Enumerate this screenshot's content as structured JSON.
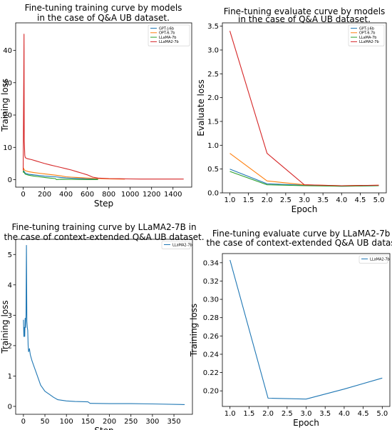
{
  "chart_data": [
    {
      "type": "line",
      "title": "Fine-tuning training curve by models\nin the case of Q&A UB dataset.",
      "xlabel": "Step",
      "ylabel": "Training loss",
      "xlim": [
        -70,
        1575
      ],
      "ylim": [
        -2.3,
        48.5
      ],
      "xticks": [
        0,
        200,
        400,
        600,
        800,
        1000,
        1200,
        1400
      ],
      "yticks": [
        0,
        10,
        20,
        30,
        40
      ],
      "legend": "top-right",
      "series": [
        {
          "name": "GPT-J-6b",
          "color": "#1f77b4",
          "x": [
            0,
            3,
            8,
            20,
            50,
            100,
            150,
            200,
            250,
            300,
            350,
            400,
            450,
            500,
            600,
            700
          ],
          "y": [
            2.4,
            2.9,
            2.6,
            2.0,
            1.7,
            1.5,
            1.3,
            1.1,
            1.0,
            0.9,
            0.7,
            0.55,
            0.45,
            0.4,
            0.3,
            0.25
          ]
        },
        {
          "name": "OPT-6.7b",
          "color": "#ff7f0e",
          "x": [
            0,
            3,
            8,
            20,
            50,
            100,
            150,
            200,
            250,
            300,
            350,
            400,
            450,
            500,
            600,
            700,
            800,
            900,
            950
          ],
          "y": [
            2.8,
            3.6,
            3.2,
            2.8,
            2.5,
            2.2,
            2.0,
            1.8,
            1.6,
            1.4,
            1.2,
            0.9,
            0.8,
            0.7,
            0.5,
            0.35,
            0.25,
            0.2,
            0.18
          ]
        },
        {
          "name": "LLaMA-7b",
          "color": "#2ca02c",
          "x": [
            0,
            3,
            8,
            20,
            50,
            100,
            150,
            200,
            250,
            300,
            310,
            350,
            400,
            450,
            500,
            600,
            700
          ],
          "y": [
            2.2,
            2.6,
            2.3,
            1.7,
            1.4,
            1.1,
            0.9,
            0.7,
            0.5,
            0.35,
            0.05,
            0.15,
            0.1,
            0.1,
            0.08,
            0.05,
            0.05
          ]
        },
        {
          "name": "LLaMA2-7b",
          "color": "#d62728",
          "x": [
            0,
            5,
            8,
            10,
            15,
            20,
            40,
            80,
            120,
            160,
            200,
            250,
            300,
            350,
            400,
            450,
            500,
            550,
            600,
            650,
            700,
            800,
            900,
            1000,
            1100,
            1200,
            1300,
            1400,
            1500
          ],
          "y": [
            3.0,
            30.0,
            45.0,
            12.0,
            7.5,
            6.8,
            6.5,
            6.2,
            5.8,
            5.4,
            5.0,
            4.6,
            4.2,
            3.8,
            3.4,
            3.0,
            2.5,
            2.0,
            1.5,
            0.8,
            0.5,
            0.35,
            0.3,
            0.25,
            0.2,
            0.2,
            0.2,
            0.2,
            0.2
          ]
        }
      ]
    },
    {
      "type": "line",
      "title": "Fine-tuning evaluate curve by models\nin the case of Q&A UB dataset.",
      "xlabel": "Epoch",
      "ylabel": "Evaluate loss",
      "xlim": [
        0.8,
        5.2
      ],
      "ylim": [
        0.0,
        3.57
      ],
      "xticks": [
        1.0,
        1.5,
        2.0,
        2.5,
        3.0,
        3.5,
        4.0,
        4.5,
        5.0
      ],
      "yticks": [
        0.0,
        0.5,
        1.0,
        1.5,
        2.0,
        2.5,
        3.0,
        3.5
      ],
      "legend": "top-right",
      "series": [
        {
          "name": "GPT-J-6b",
          "color": "#1f77b4",
          "x": [
            1,
            2,
            3,
            4,
            5
          ],
          "y": [
            0.5,
            0.19,
            0.16,
            0.14,
            0.15
          ]
        },
        {
          "name": "OPT-6.7b",
          "color": "#ff7f0e",
          "x": [
            1,
            2,
            3,
            4,
            5
          ],
          "y": [
            0.83,
            0.25,
            0.17,
            0.15,
            0.16
          ]
        },
        {
          "name": "LLaMA-7b",
          "color": "#2ca02c",
          "x": [
            1,
            2,
            3,
            4,
            5
          ],
          "y": [
            0.45,
            0.17,
            0.15,
            0.14,
            0.15
          ]
        },
        {
          "name": "LLaMA2-7b",
          "color": "#d62728",
          "x": [
            1,
            2,
            3,
            4,
            5
          ],
          "y": [
            3.4,
            0.83,
            0.17,
            0.15,
            0.16
          ]
        }
      ]
    },
    {
      "type": "line",
      "title": "Fine-tuning training curve by LLaMA2-7B in\nthe case of context-extended Q&A UB dataset.",
      "xlabel": "Step",
      "ylabel": "Training loss",
      "xlim": [
        -18,
        393
      ],
      "ylim": [
        -0.26,
        5.5
      ],
      "xticks": [
        0,
        50,
        100,
        150,
        200,
        250,
        300,
        350
      ],
      "yticks": [
        0,
        1,
        2,
        3,
        4,
        5
      ],
      "legend": "top-right",
      "series": [
        {
          "name": "LLaMA2-7b",
          "color": "#1f77b4",
          "x": [
            0,
            1,
            2,
            3,
            4,
            5,
            6,
            7,
            8,
            9,
            10,
            11,
            12,
            14,
            16,
            18,
            20,
            25,
            30,
            35,
            40,
            45,
            50,
            55,
            60,
            70,
            80,
            100,
            120,
            150,
            155,
            200,
            250,
            300,
            375
          ],
          "y": [
            2.85,
            2.3,
            2.6,
            2.3,
            2.9,
            2.6,
            3.0,
            5.3,
            2.8,
            2.6,
            2.5,
            2.0,
            1.8,
            1.9,
            1.7,
            1.6,
            1.5,
            1.3,
            1.1,
            0.9,
            0.7,
            0.6,
            0.5,
            0.45,
            0.4,
            0.3,
            0.22,
            0.18,
            0.16,
            0.15,
            0.1,
            0.09,
            0.09,
            0.08,
            0.06
          ]
        }
      ]
    },
    {
      "type": "line",
      "title": "Fine-tuning evaluate curve by LLaMA2-7b in\nthe case of context-extended Q&A UB dataset.",
      "xlabel": "Epoch",
      "ylabel": "Training loss",
      "xlim": [
        0.8,
        5.2
      ],
      "ylim": [
        0.183,
        0.35
      ],
      "xticks": [
        1.0,
        1.5,
        2.0,
        2.5,
        3.0,
        3.5,
        4.0,
        4.5,
        5.0
      ],
      "yticks": [
        0.2,
        0.22,
        0.24,
        0.26,
        0.28,
        0.3,
        0.32,
        0.34
      ],
      "legend": "top-right",
      "series": [
        {
          "name": "LLaMA2-7b",
          "color": "#1f77b4",
          "x": [
            1,
            2,
            3,
            4,
            5
          ],
          "y": [
            0.343,
            0.192,
            0.191,
            0.202,
            0.214
          ]
        }
      ]
    }
  ]
}
